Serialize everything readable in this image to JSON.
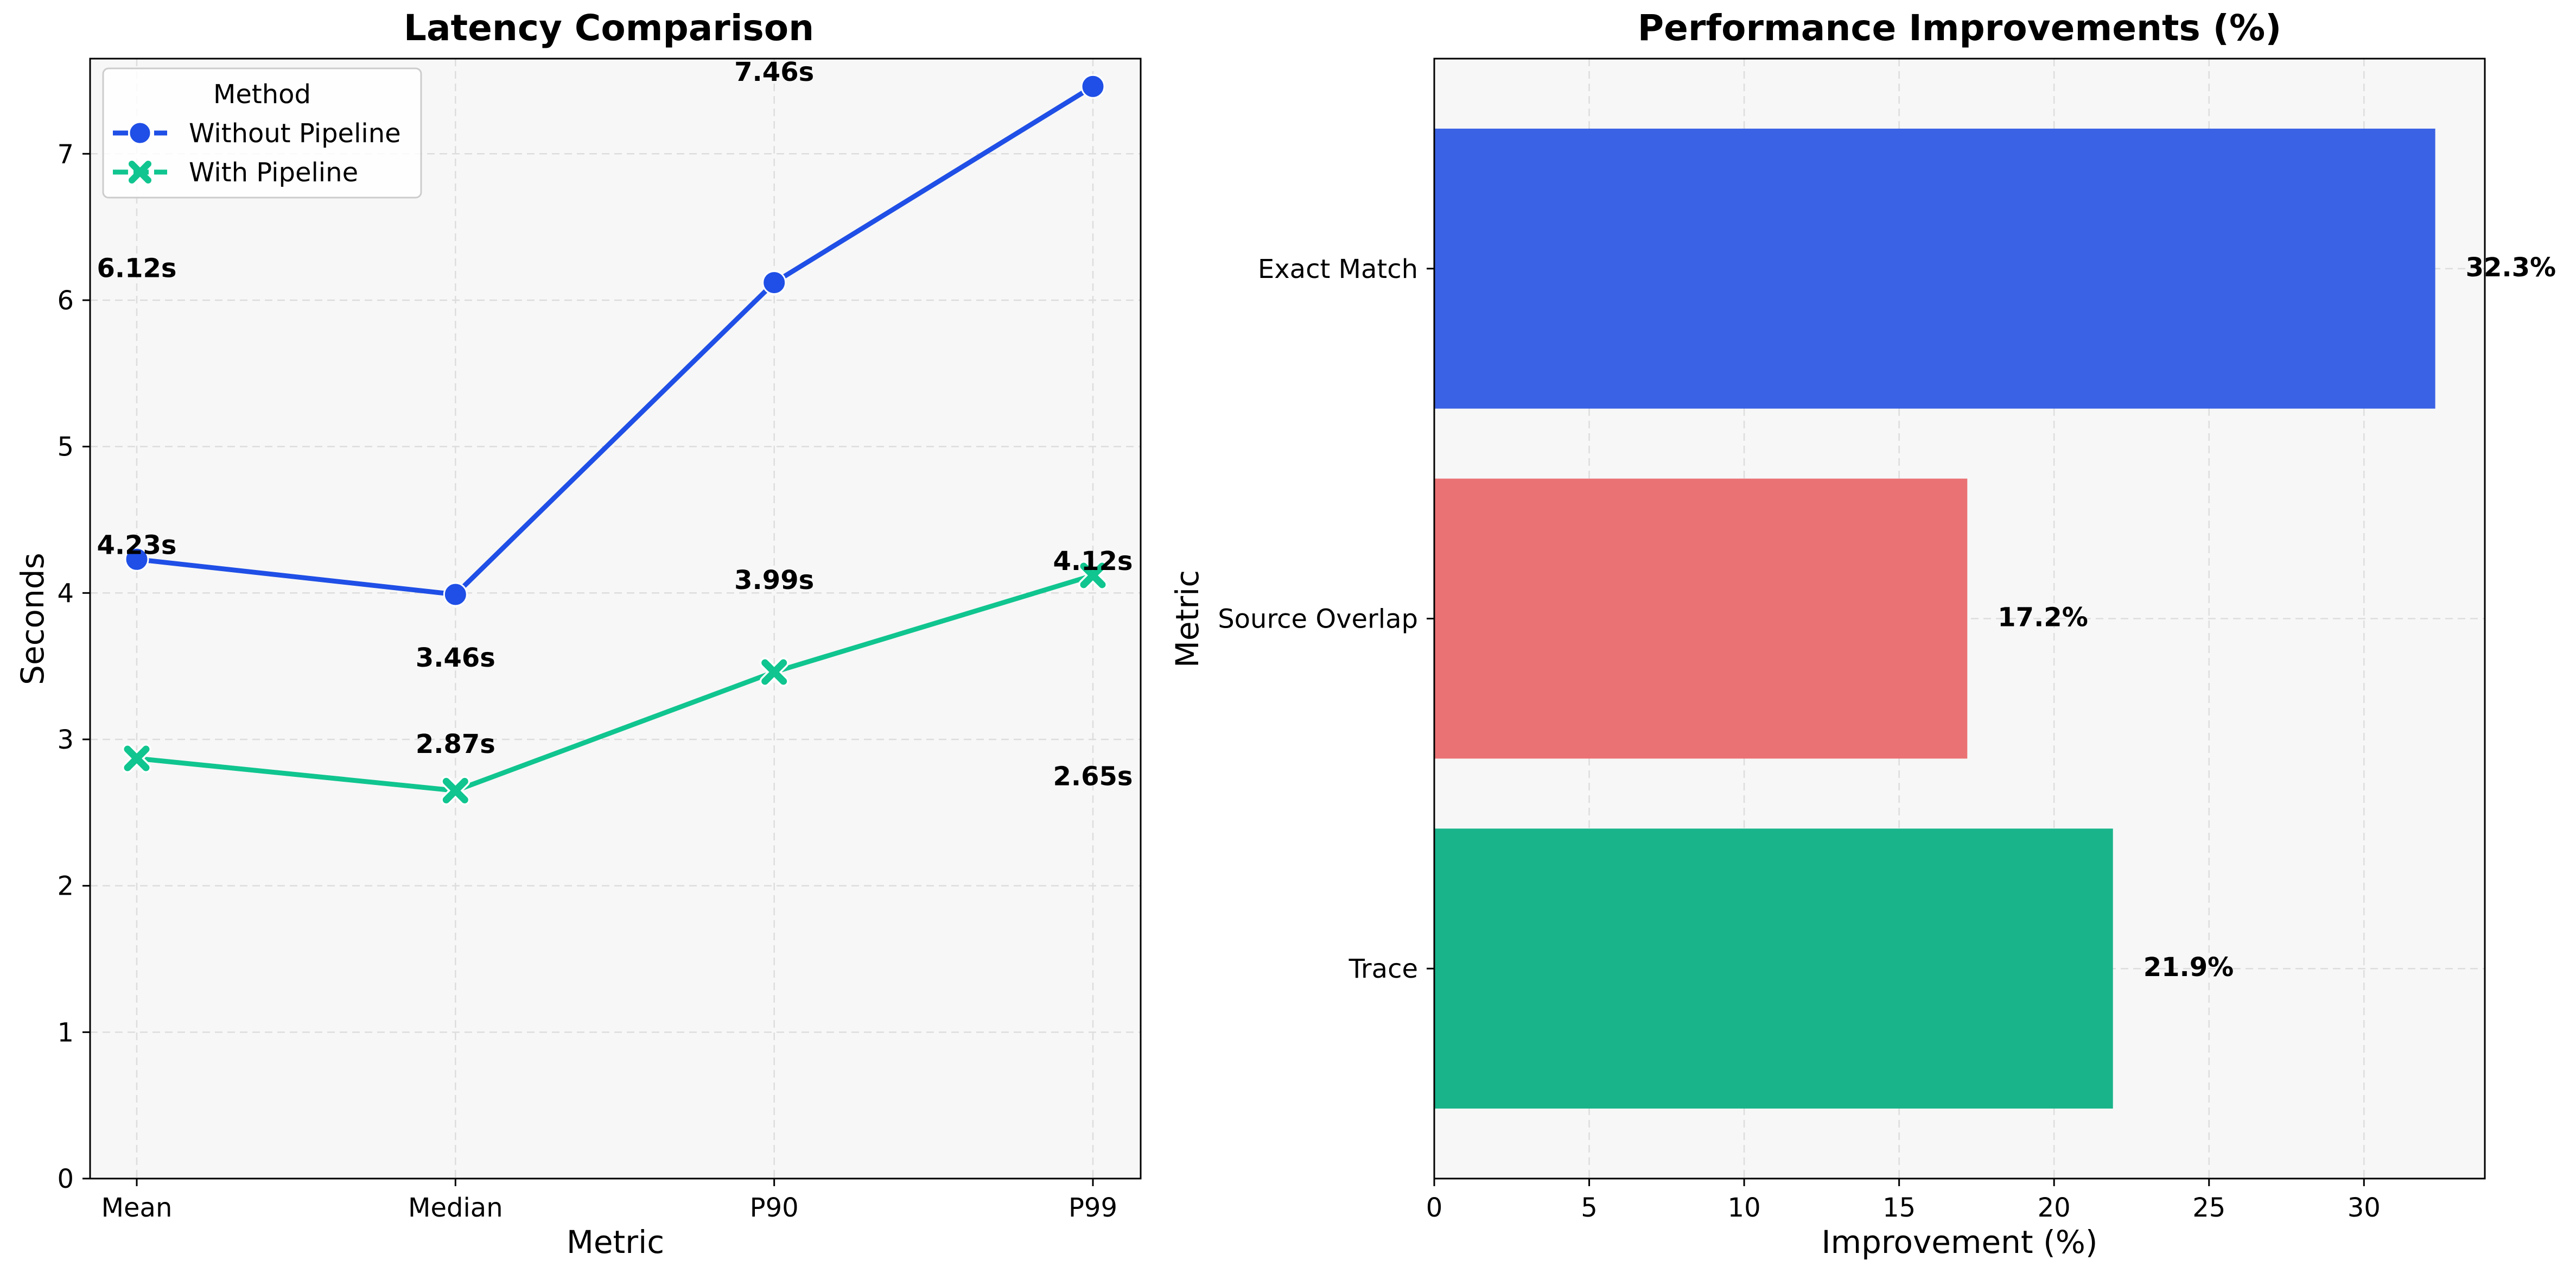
{
  "colors": {
    "without": "#1f4fe6",
    "with": "#10c58f",
    "bar_exact": "#3a62e4",
    "bar_source": "#ea7274",
    "bar_trace": "#19b48a",
    "plot_bg": "#f7f7f7",
    "grid": "#dddddd"
  },
  "chart_data": [
    {
      "type": "line",
      "title": "Latency Comparison",
      "xlabel": "Metric",
      "ylabel": "Seconds",
      "categories": [
        "Mean",
        "Median",
        "P90",
        "P99"
      ],
      "ylim": [
        0,
        7.65
      ],
      "yticks": [
        "0",
        "1",
        "2",
        "3",
        "4",
        "5",
        "6",
        "7"
      ],
      "grid": true,
      "legend": {
        "title": "Method",
        "placement": "top-left"
      },
      "series": [
        {
          "name": "Without Pipeline",
          "marker": "circle",
          "values": [
            4.23,
            3.99,
            6.12,
            7.46
          ]
        },
        {
          "name": "With Pipeline",
          "marker": "x",
          "values": [
            2.87,
            2.65,
            3.46,
            4.12
          ]
        }
      ],
      "annotations": [
        {
          "text": "6.12s",
          "at": [
            "Mean",
            6.12
          ]
        },
        {
          "text": "4.23s",
          "at": [
            "Mean",
            4.23
          ]
        },
        {
          "text": "3.46s",
          "at": [
            "Median",
            3.46
          ]
        },
        {
          "text": "2.87s",
          "at": [
            "Median",
            2.87
          ]
        },
        {
          "text": "7.46s",
          "at": [
            "P90",
            7.46
          ]
        },
        {
          "text": "3.99s",
          "at": [
            "P90",
            3.99
          ]
        },
        {
          "text": "4.12s",
          "at": [
            "P99",
            4.12
          ]
        },
        {
          "text": "2.65s",
          "at": [
            "P99",
            2.65
          ]
        }
      ]
    },
    {
      "type": "bar",
      "orientation": "horizontal",
      "title": "Performance Improvements (%)",
      "xlabel": "Improvement (%)",
      "ylabel": "Metric",
      "categories": [
        "Exact Match",
        "Source Overlap",
        "Trace"
      ],
      "values": [
        32.3,
        17.2,
        21.9
      ],
      "value_labels": [
        "32.3%",
        "17.2%",
        "21.9%"
      ],
      "xlim": [
        0,
        33.9
      ],
      "xticks": [
        "0",
        "5",
        "10",
        "15",
        "20",
        "25",
        "30"
      ],
      "grid": true
    }
  ]
}
